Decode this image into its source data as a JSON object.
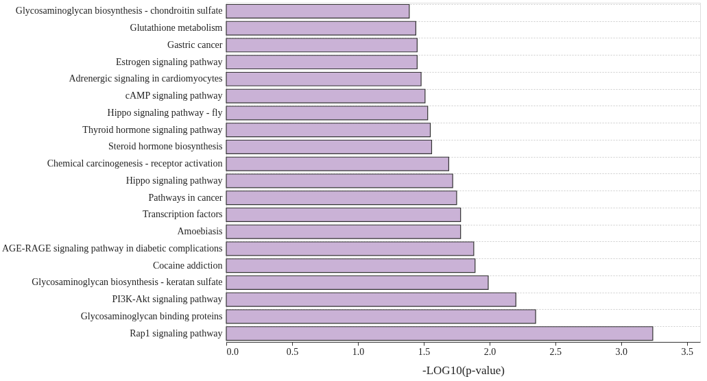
{
  "chart_data": {
    "type": "bar",
    "orientation": "horizontal",
    "xlabel": "-LOG10(p-value)",
    "categories": [
      "Glycosaminoglycan biosynthesis - chondroitin sulfate",
      "Glutathione metabolism",
      "Gastric cancer",
      "Estrogen signaling pathway",
      "Adrenergic signaling in cardiomyocytes",
      "cAMP signaling pathway",
      "Hippo signaling pathway - fly",
      "Thyroid hormone signaling pathway",
      "Steroid hormone biosynthesis",
      "Chemical carcinogenesis - receptor activation",
      "Hippo signaling pathway",
      "Pathways in cancer",
      "Transcription factors",
      "Amoebiasis",
      "AGE-RAGE signaling pathway in diabetic complications",
      "Cocaine addiction",
      "Glycosaminoglycan biosynthesis - keratan sulfate",
      "PI3K-Akt signaling pathway",
      "Glycosaminoglycan binding proteins",
      "Rap1 signaling pathway"
    ],
    "values": [
      1.39,
      1.44,
      1.45,
      1.45,
      1.48,
      1.51,
      1.53,
      1.55,
      1.56,
      1.69,
      1.72,
      1.75,
      1.78,
      1.78,
      1.88,
      1.89,
      1.99,
      2.2,
      2.35,
      3.24
    ],
    "color": "#cab2d6",
    "xlim": [
      0,
      3.6
    ],
    "xticks": [
      {
        "value": 0,
        "label": "0.0"
      },
      0.5,
      {
        "value": 1,
        "label": "1.0"
      },
      1.5,
      {
        "value": 2,
        "label": "2.0"
      },
      2.5,
      {
        "value": 3,
        "label": "3.0"
      },
      3.5
    ],
    "grid": "y"
  }
}
